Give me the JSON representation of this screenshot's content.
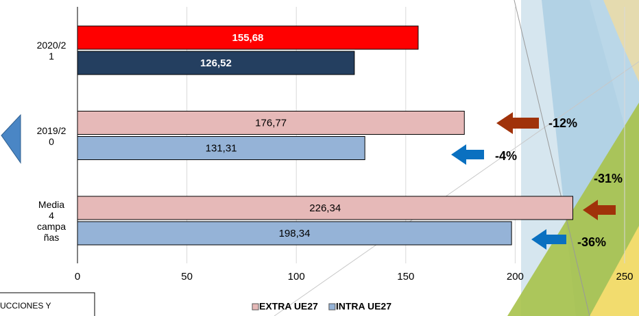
{
  "chart_data": {
    "type": "bar",
    "orientation": "horizontal",
    "categories": [
      "2020/21",
      "2019/20",
      "Media 4 campañas"
    ],
    "series": [
      {
        "name": "EXTRA UE27",
        "color": "#e6b9b8",
        "point_colors": [
          "#ff0000",
          "#e6b9b8",
          "#e6b9b8"
        ],
        "values": [
          155.68,
          176.77,
          226.34
        ],
        "value_labels": [
          "155,68",
          "176,77",
          "226,34"
        ]
      },
      {
        "name": "INTRA UE27",
        "color": "#95b3d7",
        "point_colors": [
          "#243f60",
          "#95b3d7",
          "#95b3d7"
        ],
        "values": [
          126.52,
          131.31,
          198.34
        ],
        "value_labels": [
          "126,52",
          "131,31",
          "198,34"
        ]
      }
    ],
    "xlim": [
      0,
      250
    ],
    "xticks": [
      0,
      50,
      100,
      150,
      200,
      250
    ],
    "grid": true,
    "annotations": [
      "-12%",
      "-4%",
      "-31%",
      "-36%"
    ]
  },
  "caption_box": "UCCIONES Y"
}
